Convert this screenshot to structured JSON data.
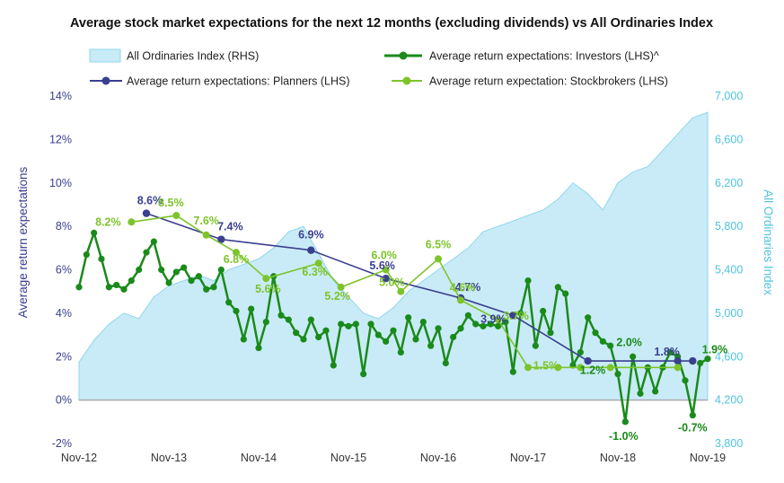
{
  "chart_data": {
    "type": "line",
    "title": "Average stock market expectations for the next 12 months (excluding dividends) vs All Ordinaries Index",
    "ylabel_left": "Average return expectations",
    "ylabel_right": "All Ordinaries Index",
    "ylim_left": [
      -2,
      14
    ],
    "ylim_right": [
      3800,
      7000
    ],
    "y_ticks_left": [
      "-2%",
      "0%",
      "2%",
      "4%",
      "6%",
      "8%",
      "10%",
      "12%",
      "14%"
    ],
    "y_ticks_right": [
      "3,800",
      "4,200",
      "4,600",
      "5,000",
      "5,400",
      "5,800",
      "6,200",
      "6,600",
      "7,000"
    ],
    "x_ticks": [
      "Nov-12",
      "Nov-13",
      "Nov-14",
      "Nov-15",
      "Nov-16",
      "Nov-17",
      "Nov-18",
      "Nov-19"
    ],
    "grid": "horizontal",
    "legend_placement": "top",
    "colors": {
      "index_fill": "#c9ebf7",
      "index_line": "#8fd6ee",
      "investors": "#1a8a1a",
      "planners": "#3a3f8f",
      "stockbrokers": "#7dc42a",
      "right_axis": "#4ec3e0",
      "left_axis": "#3a3f8f"
    },
    "series": [
      {
        "name": "All Ordinaries Index (RHS)",
        "axis": "right",
        "style": "area",
        "color": "#c9ebf7",
        "x": [
          0,
          2,
          4,
          6,
          8,
          10,
          12,
          14,
          16,
          18,
          20,
          22,
          24,
          26,
          28,
          30,
          32,
          34,
          36,
          38,
          40,
          42,
          44,
          46,
          48,
          50,
          52,
          54,
          56,
          58,
          60,
          62,
          64,
          66,
          68,
          70,
          72,
          74,
          76,
          78,
          80,
          82,
          84
        ],
        "values": [
          4550,
          4750,
          4900,
          5000,
          4950,
          5150,
          5250,
          5300,
          5350,
          5300,
          5400,
          5450,
          5500,
          5600,
          5750,
          5800,
          5550,
          5300,
          5150,
          5000,
          4950,
          5050,
          5200,
          5300,
          5400,
          5500,
          5600,
          5750,
          5800,
          5850,
          5900,
          5950,
          6050,
          6200,
          6100,
          5950,
          6200,
          6300,
          6350,
          6500,
          6650,
          6800,
          6850
        ]
      },
      {
        "name": "Average return expectations: Investors (LHS)^",
        "axis": "left",
        "style": "line-markers",
        "color": "#1a8a1a",
        "x": [
          0,
          1,
          2,
          3,
          4,
          5,
          6,
          7,
          8,
          9,
          10,
          11,
          12,
          13,
          14,
          15,
          16,
          17,
          18,
          19,
          20,
          21,
          22,
          23,
          24,
          25,
          26,
          27,
          28,
          29,
          30,
          31,
          32,
          33,
          34,
          35,
          36,
          37,
          38,
          39,
          40,
          41,
          42,
          43,
          44,
          45,
          46,
          47,
          48,
          49,
          50,
          51,
          52,
          53,
          54,
          55,
          56,
          57,
          58,
          59,
          60,
          61,
          62,
          63,
          64,
          65,
          66,
          67,
          68,
          69,
          70,
          71,
          72,
          73,
          74,
          75,
          76,
          77,
          78,
          79,
          80,
          81,
          82,
          83,
          84
        ],
        "values": [
          5.2,
          6.7,
          7.7,
          6.5,
          5.2,
          5.3,
          5.1,
          5.5,
          6.0,
          6.8,
          7.3,
          6.0,
          5.4,
          5.9,
          6.1,
          5.5,
          5.7,
          5.1,
          5.2,
          6.0,
          4.5,
          4.1,
          2.8,
          4.2,
          2.4,
          3.6,
          5.7,
          3.9,
          3.7,
          3.1,
          2.8,
          3.7,
          2.9,
          3.2,
          1.6,
          3.5,
          3.4,
          3.5,
          1.2,
          3.5,
          3.0,
          2.7,
          3.2,
          2.2,
          3.8,
          2.8,
          3.6,
          2.5,
          3.3,
          1.7,
          2.9,
          3.3,
          3.9,
          3.5,
          3.4,
          3.5,
          3.4,
          3.6,
          1.3,
          4.0,
          5.5,
          2.5,
          4.1,
          3.1,
          5.2,
          4.9,
          1.6,
          2.2,
          3.8,
          3.1,
          2.7,
          2.5,
          1.2,
          -1.0,
          2.0,
          0.3,
          1.5,
          0.4,
          1.5,
          2.2,
          2.0,
          0.9,
          -0.7,
          1.7,
          1.9
        ]
      },
      {
        "name": "Average return expectations: Planners (LHS)",
        "axis": "left",
        "style": "line-markers",
        "color": "#3a3f8f",
        "x": [
          9,
          19,
          31,
          41,
          51,
          58,
          68,
          80,
          82
        ],
        "values": [
          8.6,
          7.4,
          6.9,
          5.6,
          4.7,
          3.9,
          1.8,
          1.8,
          1.8
        ]
      },
      {
        "name": "Average return expectation: Stockbrokers (LHS)",
        "axis": "left",
        "style": "line-markers",
        "color": "#7dc42a",
        "x": [
          7,
          13,
          17,
          21,
          25,
          32,
          35,
          41,
          43,
          48,
          51,
          56,
          60,
          64,
          67,
          71,
          80
        ],
        "values": [
          8.2,
          8.5,
          7.6,
          6.8,
          5.6,
          6.3,
          5.2,
          6.0,
          5.0,
          6.5,
          4.6,
          3.7,
          1.5,
          1.5,
          1.5,
          1.5,
          1.5
        ]
      }
    ],
    "annotations": {
      "planners": [
        "8.6%",
        "7.4%",
        "6.9%",
        "5.6%",
        "4.7%",
        "3.9%",
        "1.8%"
      ],
      "stockbrokers": [
        "8.2%",
        "8.5%",
        "7.6%",
        "6.8%",
        "5.6%",
        "6.3%",
        "5.2%",
        "6.0%",
        "5.0%",
        "6.5%",
        "4.6%",
        "3.7%",
        "1.5%"
      ],
      "investors": [
        "1.2%",
        "2.0%",
        "-1.0%",
        "-0.7%",
        "1.9%"
      ]
    },
    "legend": [
      "All Ordinaries Index (RHS)",
      "Average return expectations: Investors (LHS)^",
      "Average return expectations: Planners (LHS)",
      "Average return expectation: Stockbrokers (LHS)"
    ]
  }
}
